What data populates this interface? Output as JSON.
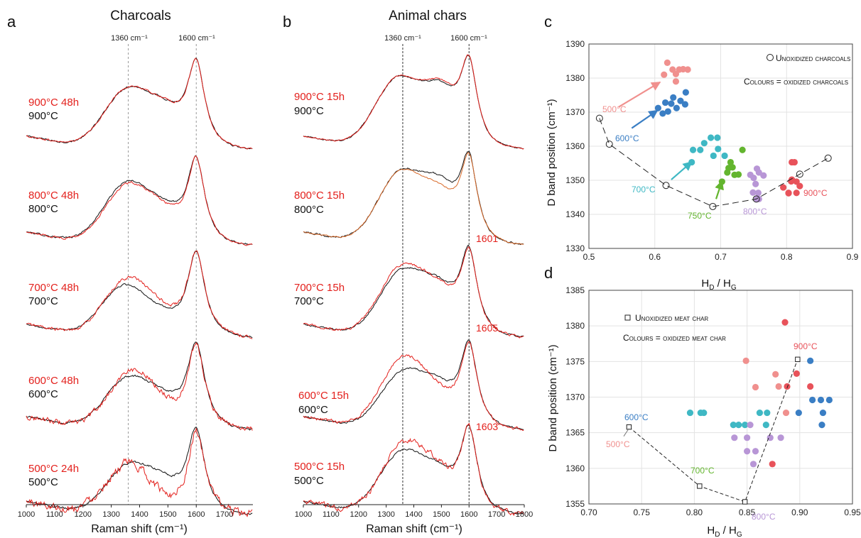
{
  "panels": {
    "a": {
      "letter": "a",
      "title": "Charcoals",
      "xlabel": "Raman shift (cm⁻¹)",
      "ref_lines": [
        "1360 cm⁻¹",
        "1600 cm⁻¹"
      ],
      "labels_red": [
        "900°C 48h",
        "800°C 48h",
        "700°C 48h",
        "600°C 48h",
        "500°C 24h"
      ],
      "labels_black": [
        "900°C",
        "800°C",
        "700°C",
        "600°C",
        "500°C"
      ]
    },
    "b": {
      "letter": "b",
      "title": "Animal chars",
      "xlabel": "Raman shift (cm⁻¹)",
      "ref_lines": [
        "1360 cm⁻¹",
        "1600 cm⁻¹"
      ],
      "labels_red": [
        "900°C 15h",
        "800°C 15h",
        "700°C 15h",
        "600°C 15h",
        "500°C 15h"
      ],
      "labels_black": [
        "900°C",
        "800°C",
        "700°C",
        "600°C",
        "500°C"
      ],
      "peak_labels": [
        "1601",
        "1605",
        "1603"
      ]
    },
    "c": {
      "letter": "c",
      "xlabel_main": "H",
      "xlabel_sub1": "D",
      "xlabel_sep": " / H",
      "xlabel_sub2": "G",
      "ylabel": "D band position (cm⁻¹)",
      "legend_marker": "Unoxidized charcoals",
      "legend_colours": "Colours = oxidized charcoals",
      "temp_labels": [
        "500°C",
        "600°C",
        "700°C",
        "750°C",
        "800°C",
        "900°C"
      ]
    },
    "d": {
      "letter": "d",
      "xlabel_main": "H",
      "xlabel_sub1": "D",
      "xlabel_sep": " / H",
      "xlabel_sub2": "G",
      "ylabel": "D band position (cm⁻¹)",
      "legend_marker": "Unoxidized meat char",
      "legend_colours": "Colours = oxidized meat char",
      "temp_labels": [
        "600°C",
        "500°C",
        "700°C",
        "800°C",
        "900°C"
      ]
    }
  },
  "colors": {
    "c500": "#f0908e",
    "c600": "#3a7ec4",
    "c700": "#3fb8c4",
    "c750": "#63b52e",
    "c800": "#b896d6",
    "c900": "#e8525a",
    "red": "#e3201c",
    "orange": "#d96b2b"
  },
  "chart_data": [
    {
      "type": "line",
      "panel": "a",
      "x_range": [
        1000,
        1800
      ],
      "xticks": [
        1000,
        1100,
        1200,
        1300,
        1400,
        1500,
        1600,
        1700
      ],
      "reference_lines": [
        1360,
        1600
      ],
      "series": [
        {
          "temperature": 900,
          "unoxidized": {
            "D_pos": 1360,
            "D_h": 0.72,
            "G_h": 1.0,
            "valley": 0.6,
            "noise": 0.008
          },
          "oxidized": {
            "D_pos": 1360,
            "D_h": 0.72,
            "G_h": 1.0,
            "valley": 0.6,
            "noise": 0.008
          }
        },
        {
          "temperature": 800,
          "unoxidized": {
            "D_pos": 1358,
            "D_h": 0.74,
            "G_h": 1.0,
            "valley": 0.55,
            "noise": 0.008
          },
          "oxidized": {
            "D_pos": 1362,
            "D_h": 0.72,
            "G_h": 1.0,
            "valley": 0.5,
            "noise": 0.01
          }
        },
        {
          "temperature": 700,
          "unoxidized": {
            "D_pos": 1350,
            "D_h": 0.62,
            "G_h": 1.0,
            "valley": 0.42,
            "noise": 0.008
          },
          "oxidized": {
            "D_pos": 1360,
            "D_h": 0.7,
            "G_h": 1.0,
            "valley": 0.42,
            "noise": 0.015
          }
        },
        {
          "temperature": 600,
          "unoxidized": {
            "D_pos": 1362,
            "D_h": 0.62,
            "G_h": 1.0,
            "valley": 0.5,
            "noise": 0.01
          },
          "oxidized": {
            "D_pos": 1375,
            "D_h": 0.7,
            "G_h": 1.0,
            "valley": 0.36,
            "noise": 0.025
          }
        },
        {
          "temperature": 500,
          "unoxidized": {
            "D_pos": 1368,
            "D_h": 0.6,
            "G_h": 1.0,
            "valley": 0.5,
            "noise": 0.012
          },
          "oxidized": {
            "D_pos": 1360,
            "D_h": 0.6,
            "G_h": 1.0,
            "valley": 0.28,
            "noise": 0.04
          }
        }
      ]
    },
    {
      "type": "line",
      "panel": "b",
      "x_range": [
        1000,
        1800
      ],
      "xticks": [
        1000,
        1100,
        1200,
        1300,
        1400,
        1500,
        1600,
        1700,
        1800
      ],
      "reference_lines": [
        1360,
        1600
      ],
      "series": [
        {
          "temperature": 900,
          "unoxidized": {
            "D_pos": 1345,
            "D_h": 0.86,
            "G_h": 1.0,
            "valley": 0.85,
            "noise": 0.006
          },
          "oxidized": {
            "D_pos": 1345,
            "D_h": 0.86,
            "G_h": 1.0,
            "valley": 0.87,
            "noise": 0.006
          }
        },
        {
          "temperature": 800,
          "unoxidized": {
            "D_pos": 1355,
            "D_h": 0.88,
            "G_h": 1.0,
            "valley": 0.82,
            "noise": 0.008
          },
          "oxidized": {
            "D_pos": 1355,
            "D_h": 0.88,
            "G_h": 1.0,
            "valley": 0.72,
            "noise": 0.006
          }
        },
        {
          "temperature": 700,
          "unoxidized": {
            "D_pos": 1360,
            "D_h": 0.8,
            "G_h": 1.0,
            "valley": 0.7,
            "noise": 0.008
          },
          "oxidized": {
            "D_pos": 1360,
            "D_h": 0.86,
            "G_h": 1.0,
            "valley": 0.66,
            "noise": 0.012
          }
        },
        {
          "temperature": 600,
          "unoxidized": {
            "D_pos": 1365,
            "D_h": 0.7,
            "G_h": 1.0,
            "valley": 0.62,
            "noise": 0.008
          },
          "oxidized": {
            "D_pos": 1365,
            "D_h": 0.86,
            "G_h": 1.0,
            "valley": 0.5,
            "noise": 0.015
          }
        },
        {
          "temperature": 500,
          "unoxidized": {
            "D_pos": 1360,
            "D_h": 0.76,
            "G_h": 1.0,
            "valley": 0.62,
            "noise": 0.008
          },
          "oxidized": {
            "D_pos": 1370,
            "D_h": 0.86,
            "G_h": 1.0,
            "valley": 0.56,
            "noise": 0.025
          }
        }
      ]
    },
    {
      "type": "scatter",
      "panel": "c",
      "xlim": [
        0.5,
        0.9
      ],
      "ylim": [
        1330,
        1390
      ],
      "xticks": [
        0.5,
        0.6,
        0.7,
        0.8,
        0.9
      ],
      "yticks": [
        1330,
        1340,
        1350,
        1360,
        1370,
        1380,
        1390
      ],
      "unoxidized": [
        [
          0.516,
          1368.2
        ],
        [
          0.531,
          1360.6
        ],
        [
          0.617,
          1348.5
        ],
        [
          0.688,
          1342.3
        ],
        [
          0.754,
          1344.5
        ],
        [
          0.82,
          1351.8
        ],
        [
          0.863,
          1356.5
        ]
      ],
      "oxidized": [
        {
          "temperature": 500,
          "points": [
            [
              0.614,
              1381
            ],
            [
              0.619,
              1384.5
            ],
            [
              0.627,
              1382.5
            ],
            [
              0.632,
              1381.2
            ],
            [
              0.637,
              1382.5
            ],
            [
              0.643,
              1382.6
            ],
            [
              0.632,
              1379
            ],
            [
              0.65,
              1382.5
            ]
          ]
        },
        {
          "temperature": 600,
          "points": [
            [
              0.605,
              1371.2
            ],
            [
              0.612,
              1369.6
            ],
            [
              0.616,
              1372.8
            ],
            [
              0.62,
              1370.2
            ],
            [
              0.625,
              1372.5
            ],
            [
              0.628,
              1374.3
            ],
            [
              0.633,
              1371.2
            ],
            [
              0.639,
              1373.3
            ],
            [
              0.646,
              1372.3
            ],
            [
              0.647,
              1375.8
            ]
          ]
        },
        {
          "temperature": 700,
          "points": [
            [
              0.656,
              1355.3
            ],
            [
              0.658,
              1358.9
            ],
            [
              0.669,
              1358.9
            ],
            [
              0.675,
              1360.9
            ],
            [
              0.685,
              1362.5
            ],
            [
              0.689,
              1357.2
            ],
            [
              0.695,
              1362.5
            ],
            [
              0.696,
              1359.2
            ],
            [
              0.706,
              1357.2
            ]
          ]
        },
        {
          "temperature": 750,
          "points": [
            [
              0.702,
              1349.6
            ],
            [
              0.71,
              1352.3
            ],
            [
              0.712,
              1353.6
            ],
            [
              0.715,
              1355.3
            ],
            [
              0.718,
              1353.8
            ],
            [
              0.721,
              1351.6
            ],
            [
              0.727,
              1351.7
            ],
            [
              0.733,
              1358.9
            ]
          ]
        },
        {
          "temperature": 800,
          "points": [
            [
              0.745,
              1351.6
            ],
            [
              0.75,
              1350.7
            ],
            [
              0.753,
              1348.9
            ],
            [
              0.755,
              1353.4
            ],
            [
              0.758,
              1352.3
            ],
            [
              0.765,
              1351.4
            ],
            [
              0.749,
              1346.4
            ],
            [
              0.757,
              1346.3
            ],
            [
              0.755,
              1344.5
            ],
            [
              0.758,
              1344.5
            ]
          ]
        },
        {
          "temperature": 900,
          "points": [
            [
              0.795,
              1347.9
            ],
            [
              0.803,
              1346.3
            ],
            [
              0.807,
              1349.7
            ],
            [
              0.808,
              1355.3
            ],
            [
              0.812,
              1355.3
            ],
            [
              0.815,
              1349.6
            ],
            [
              0.815,
              1346.3
            ],
            [
              0.82,
              1348.3
            ],
            [
              0.808,
              1350.2
            ],
            [
              0.803,
              1346.2
            ]
          ]
        }
      ]
    },
    {
      "type": "scatter",
      "panel": "d",
      "xlim": [
        0.7,
        0.95
      ],
      "ylim": [
        1355,
        1385
      ],
      "xticks": [
        0.7,
        0.75,
        0.8,
        0.85,
        0.9,
        0.95
      ],
      "yticks": [
        1355,
        1360,
        1365,
        1370,
        1375,
        1380,
        1385
      ],
      "unoxidized": [
        [
          0.738,
          1365.8
        ],
        [
          0.805,
          1357.5
        ],
        [
          0.848,
          1355.3
        ],
        [
          0.898,
          1375.3
        ]
      ],
      "oxidized": [
        {
          "temperature": 500,
          "points": [
            [
              0.849,
              1375.1
            ],
            [
              0.858,
              1371.4
            ],
            [
              0.877,
              1373.2
            ],
            [
              0.88,
              1371.5
            ],
            [
              0.887,
              1367.8
            ]
          ]
        },
        {
          "temperature": 600,
          "points": [
            [
              0.899,
              1367.8
            ],
            [
              0.91,
              1375.1
            ],
            [
              0.912,
              1369.6
            ],
            [
              0.92,
              1369.6
            ],
            [
              0.922,
              1367.8
            ],
            [
              0.921,
              1366.1
            ],
            [
              0.928,
              1369.6
            ]
          ]
        },
        {
          "temperature": 700,
          "points": [
            [
              0.796,
              1367.8
            ],
            [
              0.806,
              1367.8
            ],
            [
              0.809,
              1367.8
            ],
            [
              0.837,
              1366.1
            ],
            [
              0.842,
              1366.1
            ],
            [
              0.848,
              1366.1
            ],
            [
              0.862,
              1367.8
            ],
            [
              0.869,
              1367.8
            ],
            [
              0.868,
              1366.1
            ]
          ]
        },
        {
          "temperature": 800,
          "points": [
            [
              0.838,
              1364.3
            ],
            [
              0.85,
              1362.4
            ],
            [
              0.85,
              1364.3
            ],
            [
              0.853,
              1366.1
            ],
            [
              0.858,
              1362.4
            ],
            [
              0.856,
              1360.6
            ],
            [
              0.872,
              1364.3
            ],
            [
              0.882,
              1364.3
            ]
          ]
        },
        {
          "temperature": 900,
          "points": [
            [
              0.874,
              1360.6
            ],
            [
              0.886,
              1380.5
            ],
            [
              0.888,
              1371.5
            ],
            [
              0.897,
              1373.3
            ],
            [
              0.91,
              1371.5
            ]
          ]
        }
      ]
    }
  ]
}
